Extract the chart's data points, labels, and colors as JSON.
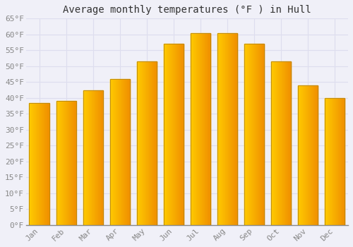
{
  "title": "Average monthly temperatures (°F ) in Hull",
  "months": [
    "Jan",
    "Feb",
    "Mar",
    "Apr",
    "May",
    "Jun",
    "Jul",
    "Aug",
    "Sep",
    "Oct",
    "Nov",
    "Dec"
  ],
  "values": [
    38.5,
    39.0,
    42.5,
    46.0,
    51.5,
    57.0,
    60.5,
    60.5,
    57.0,
    51.5,
    44.0,
    40.0
  ],
  "bar_color_face": "#FFA500",
  "bar_color_edge": "#CC8800",
  "bar_color_left": "#F5C000",
  "bar_color_right": "#E07800",
  "ylim": [
    0,
    65
  ],
  "yticks": [
    0,
    5,
    10,
    15,
    20,
    25,
    30,
    35,
    40,
    45,
    50,
    55,
    60,
    65
  ],
  "background_color": "#F0F0F8",
  "grid_color": "#DDDDEE",
  "title_fontsize": 10,
  "tick_fontsize": 8,
  "font_family": "monospace"
}
